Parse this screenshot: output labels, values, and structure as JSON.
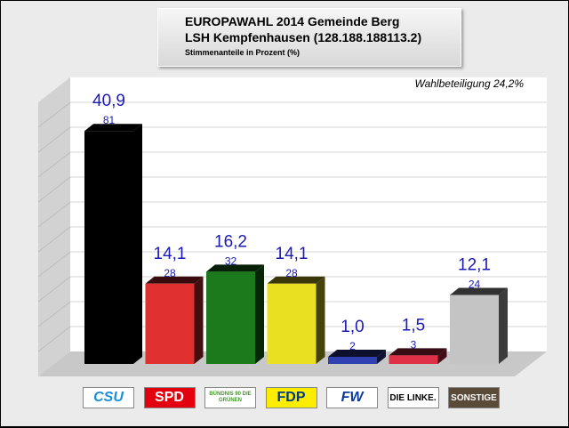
{
  "title_line1": "EUROPAWAHL 2014 Gemeinde Berg",
  "title_line2": "LSH Kempfenhausen (128.188.188113.2)",
  "subtitle": "Stimmenanteile in Prozent (%)",
  "turnout_label": "Wahlbeteiligung 24,2%",
  "chart_data": {
    "type": "bar",
    "title": "EUROPAWAHL 2014 Gemeinde Berg",
    "subtitle": "Stimmenanteile in Prozent (%)",
    "categories": [
      "CSU",
      "SPD",
      "BÜNDNIS 90 DIE GRÜNEN",
      "FDP",
      "FW",
      "DIE LINKE.",
      "SONSTIGE"
    ],
    "values": [
      40.9,
      14.1,
      16.2,
      14.1,
      1.0,
      1.5,
      12.1
    ],
    "value_labels": [
      "40,9",
      "14,1",
      "16,2",
      "14,1",
      "1,0",
      "1,5",
      "12,1"
    ],
    "votes": [
      81,
      28,
      32,
      28,
      2,
      3,
      24
    ],
    "colors": [
      "#000000",
      "#e03030",
      "#1c7a1c",
      "#e8e020",
      "#3040b0",
      "#e03048",
      "#c4c4c4"
    ],
    "ylim": [
      0,
      45
    ],
    "grid": true,
    "xlabel": "",
    "ylabel": ""
  },
  "legend": [
    {
      "text": "CSU",
      "bg": "#ffffff",
      "fg": "#1a8fd8"
    },
    {
      "text": "SPD",
      "bg": "#e3000f",
      "fg": "#ffffff"
    },
    {
      "text": "BÜNDNIS 90 DIE GRÜNEN",
      "bg": "#ffffff",
      "fg": "#46962b"
    },
    {
      "text": "FDP",
      "bg": "#ffed00",
      "fg": "#003a80"
    },
    {
      "text": "FW",
      "bg": "#ffffff",
      "fg": "#0a3a9a"
    },
    {
      "text": "DIE LINKE.",
      "bg": "#ffffff",
      "fg": "#000000"
    },
    {
      "text": "SONSTIGE",
      "bg": "#5a4a38",
      "fg": "#ffffff"
    }
  ]
}
